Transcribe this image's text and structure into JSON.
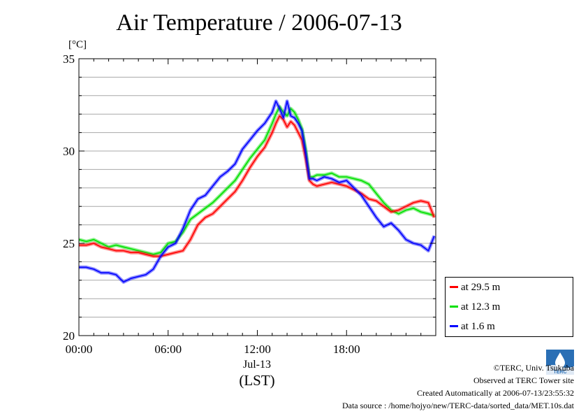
{
  "title": "Air Temperature / 2006-07-13",
  "unit_label": "[°C]",
  "chart_data": {
    "type": "line",
    "title": "Air Temperature / 2006-07-13",
    "ylabel": "[°C]",
    "xlabel": "(LST)",
    "date_label": "Jul-13",
    "xlim": [
      0,
      24
    ],
    "ylim": [
      20,
      35
    ],
    "x_ticks": [
      0,
      6,
      12,
      18
    ],
    "x_tick_labels": [
      "00:00",
      "06:00",
      "12:00",
      "18:00"
    ],
    "y_ticks": [
      20,
      25,
      30,
      35
    ],
    "y_tick_labels": [
      "20",
      "25",
      "30",
      "35"
    ],
    "grid": "horizontal",
    "legend_position": "bottom-right outside",
    "series": [
      {
        "name": "at 29.5 m",
        "color": "#ff0000",
        "x": [
          0,
          0.5,
          1,
          1.5,
          2,
          2.5,
          3,
          3.5,
          4,
          4.5,
          5,
          5.5,
          6,
          6.5,
          7,
          7.5,
          8,
          8.5,
          9,
          9.5,
          10,
          10.5,
          11,
          11.5,
          12,
          12.5,
          13,
          13.25,
          13.5,
          13.75,
          14,
          14.25,
          14.5,
          14.75,
          15,
          15.25,
          15.5,
          15.75,
          16,
          16.5,
          17,
          17.5,
          18,
          18.5,
          19,
          19.5,
          20,
          20.5,
          21,
          21.5,
          22,
          22.5,
          23,
          23.5,
          23.9
        ],
        "values": [
          24.9,
          24.9,
          25.0,
          24.8,
          24.7,
          24.6,
          24.6,
          24.5,
          24.5,
          24.4,
          24.3,
          24.3,
          24.4,
          24.5,
          24.6,
          25.2,
          26.0,
          26.4,
          26.6,
          27.0,
          27.4,
          27.8,
          28.4,
          29.1,
          29.7,
          30.2,
          31.0,
          31.5,
          31.9,
          31.7,
          31.3,
          31.6,
          31.4,
          31.0,
          30.6,
          29.6,
          28.4,
          28.2,
          28.1,
          28.2,
          28.3,
          28.2,
          28.1,
          27.9,
          27.7,
          27.4,
          27.3,
          27.0,
          26.7,
          26.8,
          27.0,
          27.2,
          27.3,
          27.2,
          26.4
        ]
      },
      {
        "name": "at 12.3 m",
        "color": "#00e000",
        "x": [
          0,
          0.5,
          1,
          1.5,
          2,
          2.5,
          3,
          3.5,
          4,
          4.5,
          5,
          5.5,
          6,
          6.5,
          7,
          7.5,
          8,
          8.5,
          9,
          9.5,
          10,
          10.5,
          11,
          11.5,
          12,
          12.5,
          13,
          13.25,
          13.5,
          13.75,
          14,
          14.25,
          14.5,
          14.75,
          15,
          15.25,
          15.5,
          15.75,
          16,
          16.5,
          17,
          17.5,
          18,
          18.5,
          19,
          19.5,
          20,
          20.5,
          21,
          21.5,
          22,
          22.5,
          23,
          23.5,
          23.9
        ],
        "values": [
          25.2,
          25.1,
          25.2,
          25.0,
          24.8,
          24.9,
          24.8,
          24.7,
          24.6,
          24.5,
          24.4,
          24.5,
          25.0,
          25.1,
          25.6,
          26.3,
          26.6,
          26.9,
          27.2,
          27.6,
          28.0,
          28.4,
          29.0,
          29.6,
          30.1,
          30.6,
          31.5,
          32.0,
          32.4,
          32.1,
          31.9,
          32.3,
          32.1,
          31.7,
          31.2,
          30.1,
          28.6,
          28.6,
          28.7,
          28.7,
          28.8,
          28.6,
          28.6,
          28.5,
          28.4,
          28.2,
          27.7,
          27.2,
          26.8,
          26.6,
          26.8,
          26.9,
          26.7,
          26.6,
          26.5
        ]
      },
      {
        "name": "at 1.6 m",
        "color": "#0000ff",
        "x": [
          0,
          0.5,
          1,
          1.5,
          2,
          2.5,
          3,
          3.5,
          4,
          4.5,
          5,
          5.5,
          6,
          6.5,
          7,
          7.5,
          8,
          8.5,
          9,
          9.5,
          10,
          10.5,
          11,
          11.5,
          12,
          12.5,
          13,
          13.25,
          13.5,
          13.75,
          14,
          14.25,
          14.5,
          14.75,
          15,
          15.25,
          15.5,
          15.75,
          16,
          16.5,
          17,
          17.5,
          18,
          18.5,
          19,
          19.5,
          20,
          20.5,
          21,
          21.5,
          22,
          22.5,
          23,
          23.5,
          23.9
        ],
        "values": [
          23.7,
          23.7,
          23.6,
          23.4,
          23.4,
          23.3,
          22.9,
          23.1,
          23.2,
          23.3,
          23.6,
          24.3,
          24.8,
          25.0,
          25.8,
          26.8,
          27.4,
          27.6,
          28.1,
          28.6,
          28.9,
          29.3,
          30.1,
          30.6,
          31.1,
          31.5,
          32.1,
          32.7,
          32.3,
          31.8,
          32.7,
          31.9,
          31.8,
          31.5,
          31.1,
          29.9,
          28.5,
          28.5,
          28.4,
          28.6,
          28.5,
          28.3,
          28.4,
          28.0,
          27.6,
          27.0,
          26.4,
          25.9,
          26.1,
          25.7,
          25.2,
          25.0,
          24.9,
          24.6,
          25.4
        ]
      }
    ]
  },
  "footer": {
    "copyright": "©TERC, Univ. Tsukuba",
    "observed": "Observed at TERC Tower site",
    "created": "Created Automatically at 2006-07-13/23:55:32",
    "source": "Data source : /home/hojyo/new/TERC-data/sorted_data/MET.10s.dat"
  },
  "logo_text": "TERC",
  "logo_icon": "terc-logo-icon"
}
